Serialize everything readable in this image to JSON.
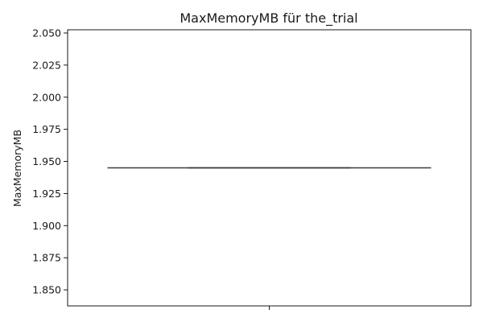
{
  "chart_data": {
    "type": "box",
    "title": "MaxMemoryMB für the_trial",
    "xlabel": "",
    "ylabel": "MaxMemoryMB",
    "ylim": [
      1.8375,
      2.0525
    ],
    "yticks": [
      1.85,
      1.875,
      1.9,
      1.925,
      1.95,
      1.975,
      2.0,
      2.025,
      2.05
    ],
    "ytick_labels": [
      "1.850",
      "1.875",
      "1.900",
      "1.925",
      "1.950",
      "1.975",
      "2.000",
      "2.025",
      "2.050"
    ],
    "categories": [
      ""
    ],
    "series": [
      {
        "values": [
          1.945
        ],
        "min": 1.945,
        "q1": 1.945,
        "median": 1.945,
        "q3": 1.945,
        "max": 1.945
      }
    ],
    "grid": false,
    "colors": {
      "box": "#3d3d3d",
      "axis": "#000000"
    }
  }
}
